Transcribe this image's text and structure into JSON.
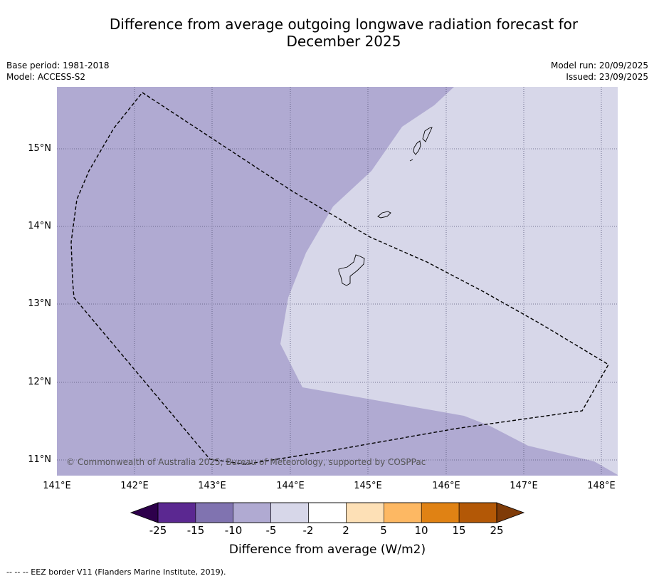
{
  "title_line1": "Difference from average outgoing longwave radiation forecast for",
  "title_line2": "December 2025",
  "meta": {
    "base_period": "Base period: 1981-2018",
    "model": "Model: ACCESS-S2",
    "model_run": "Model run: 20/09/2025",
    "issued": "Issued: 23/09/2025"
  },
  "map": {
    "lat_ticks": [
      "15°N",
      "14°N",
      "13°N",
      "12°N",
      "11°N"
    ],
    "lon_ticks": [
      "141°E",
      "142°E",
      "143°E",
      "144°E",
      "145°E",
      "146°E",
      "147°E",
      "148°E"
    ],
    "copyright": "© Commonwealth of Australia 2025, Bureau of Meteorology, supported by COSPPac",
    "fill_colors": {
      "minus10_minus5": "#b0aad2",
      "minus5_minus2": "#d7d7e9"
    },
    "eez_line_color": "#000000"
  },
  "colorbar": {
    "title": "Difference from average (W/m2)",
    "labels": [
      "-25",
      "-15",
      "-10",
      "-5",
      "-2",
      "2",
      "5",
      "10",
      "15",
      "25"
    ],
    "colors": [
      "#5b2891",
      "#8073b0",
      "#b0aad2",
      "#d7d7e9",
      "#ffffff",
      "#fde0b6",
      "#fdb863",
      "#e08214",
      "#b35806"
    ],
    "under_color": "#2d004b",
    "over_color": "#7f3b08"
  },
  "footnote": "--  --  -- EEZ border V11 (Flanders Marine Institute, 2019)."
}
